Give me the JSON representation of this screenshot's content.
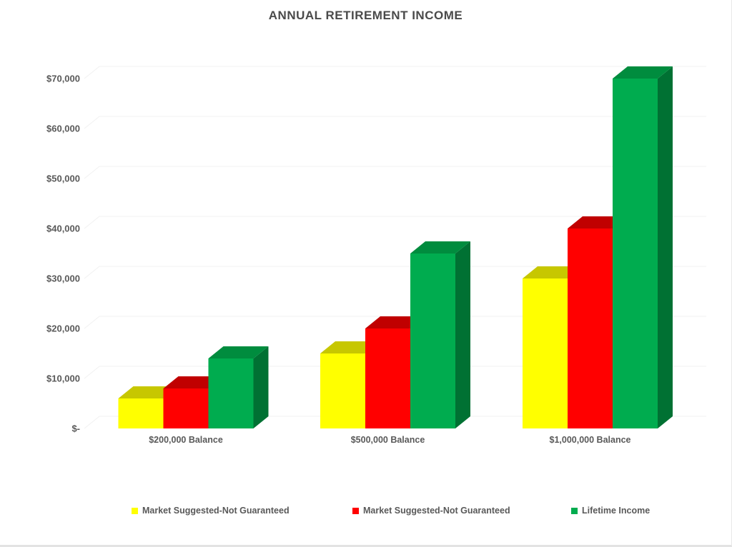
{
  "chart_data": {
    "type": "bar",
    "variant": "3d-clustered-column",
    "title": "ANNUAL RETIREMENT INCOME",
    "categories": [
      "$200,000 Balance",
      "$500,000 Balance",
      "$1,000,000 Balance"
    ],
    "series": [
      {
        "name": "Market Suggested-Not Guaranteed",
        "values": [
          6000,
          15000,
          30000
        ],
        "color_front": "#FFFF00",
        "color_top": "#C7C700",
        "color_side": "#9A9A00"
      },
      {
        "name": "Market Suggested-Not Guaranteed",
        "values": [
          8000,
          20000,
          40000
        ],
        "color_front": "#FF0000",
        "color_top": "#C00000",
        "color_side": "#940000"
      },
      {
        "name": "Lifetime Income",
        "values": [
          14000,
          35000,
          70000
        ],
        "color_front": "#00AC4F",
        "color_top": "#008C3E",
        "color_side": "#007133"
      }
    ],
    "y_axis": {
      "min": 0,
      "max": 70000,
      "step": 10000,
      "tick_labels": [
        "$-",
        "$10,000",
        "$20,000",
        "$30,000",
        "$40,000",
        "$50,000",
        "$60,000",
        "$70,000"
      ]
    },
    "legend_position": "bottom",
    "grid": true,
    "background_color": "#FFFFFF",
    "title_color": "#4A4A4A",
    "label_color": "#595959",
    "gridline_color": "#F1F1F1"
  }
}
